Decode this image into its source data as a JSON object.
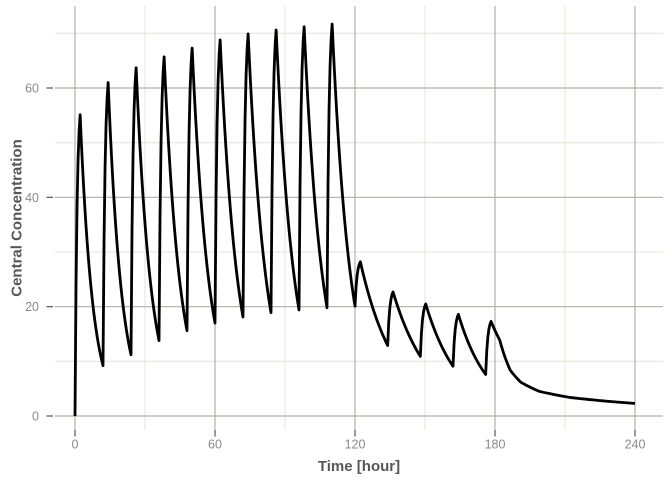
{
  "chart_data": {
    "type": "line",
    "title": "",
    "xlabel": "Time [hour]",
    "ylabel": "Central Concentration",
    "x_ticks": [
      0,
      60,
      120,
      180,
      240
    ],
    "y_ticks": [
      0,
      20,
      40,
      60
    ],
    "x_minor": [
      30,
      90,
      150,
      210
    ],
    "y_minor": [
      10,
      30,
      50,
      70
    ],
    "xlim": [
      -8.6,
      252
    ],
    "ylim": [
      -3.4,
      75
    ],
    "grid": true,
    "legend_position": "none",
    "series": [
      {
        "name": "central-concentration",
        "color": "#000000",
        "keypoints": [
          {
            "t": 0,
            "c": 0,
            "seg": "start"
          },
          {
            "t": 2.2,
            "c": 55.1,
            "seg": "rise"
          },
          {
            "t": 12,
            "c": 9.2,
            "seg": "decay"
          },
          {
            "t": 14.2,
            "c": 61.0,
            "seg": "rise"
          },
          {
            "t": 24,
            "c": 11.2,
            "seg": "decay"
          },
          {
            "t": 26.2,
            "c": 63.7,
            "seg": "rise"
          },
          {
            "t": 36,
            "c": 13.8,
            "seg": "decay"
          },
          {
            "t": 38.2,
            "c": 65.7,
            "seg": "rise"
          },
          {
            "t": 48,
            "c": 15.6,
            "seg": "decay"
          },
          {
            "t": 50.2,
            "c": 67.3,
            "seg": "rise"
          },
          {
            "t": 60,
            "c": 17.0,
            "seg": "decay"
          },
          {
            "t": 62.2,
            "c": 68.8,
            "seg": "rise"
          },
          {
            "t": 72,
            "c": 18.1,
            "seg": "decay"
          },
          {
            "t": 74.2,
            "c": 69.9,
            "seg": "rise"
          },
          {
            "t": 84,
            "c": 18.9,
            "seg": "decay"
          },
          {
            "t": 86.2,
            "c": 70.6,
            "seg": "rise"
          },
          {
            "t": 96,
            "c": 19.4,
            "seg": "decay"
          },
          {
            "t": 98.2,
            "c": 71.2,
            "seg": "rise"
          },
          {
            "t": 108,
            "c": 19.8,
            "seg": "decay"
          },
          {
            "t": 110.2,
            "c": 71.7,
            "seg": "rise"
          },
          {
            "t": 120,
            "c": 20.1,
            "seg": "decay"
          },
          {
            "t": 122.3,
            "c": 28.2,
            "seg": "rise"
          },
          {
            "t": 134,
            "c": 12.9,
            "seg": "decay"
          },
          {
            "t": 136.3,
            "c": 22.7,
            "seg": "rise"
          },
          {
            "t": 148,
            "c": 10.9,
            "seg": "decay"
          },
          {
            "t": 150.3,
            "c": 20.5,
            "seg": "rise"
          },
          {
            "t": 162,
            "c": 9.1,
            "seg": "decay"
          },
          {
            "t": 164.3,
            "c": 18.6,
            "seg": "rise"
          },
          {
            "t": 176,
            "c": 7.6,
            "seg": "decay"
          },
          {
            "t": 178.3,
            "c": 17.3,
            "seg": "rise"
          },
          {
            "t": 182,
            "c": 13.9,
            "seg": "decay"
          },
          {
            "t": 186.5,
            "c": 8.4,
            "seg": "decay"
          },
          {
            "t": 191,
            "c": 6.2,
            "seg": "decay"
          },
          {
            "t": 199,
            "c": 4.5,
            "seg": "decay"
          },
          {
            "t": 212,
            "c": 3.4,
            "seg": "decay"
          },
          {
            "t": 228,
            "c": 2.7,
            "seg": "decay"
          },
          {
            "t": 240,
            "c": 2.3,
            "seg": "decay"
          }
        ]
      }
    ]
  },
  "colors": {
    "curve": "#000000",
    "grid_major": "#b0b0aa",
    "grid_minor": "#e6e6da",
    "tick_mark": "#555555",
    "tick_label": "#8a8a8a",
    "axis_title": "#575757",
    "background": "#ffffff"
  }
}
